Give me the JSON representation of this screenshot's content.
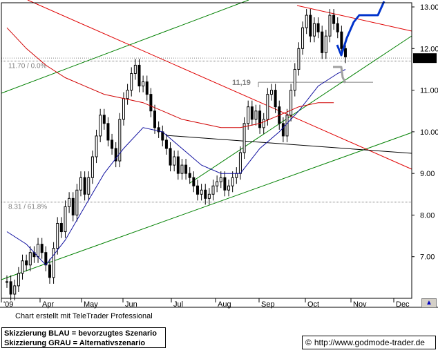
{
  "chart_data": {
    "type": "candlestick",
    "y_ticks": [
      "13.00",
      "12.00",
      "11.00",
      "10.00",
      "9.00",
      "8.00",
      "7.00"
    ],
    "x_ticks": [
      "'09",
      "Apr",
      "May",
      "Jun",
      "Jul",
      "Aug",
      "Sep",
      "Oct",
      "Nov",
      "Dec"
    ],
    "ylim": [
      6.0,
      13.1
    ],
    "last_price": "11.77",
    "fib_levels": [
      {
        "label": "11.70 / 0.0%",
        "value": 11.7
      },
      {
        "label": "8.31 / 61.8%",
        "value": 8.31
      }
    ],
    "annotation": {
      "label": "11,19",
      "value": 11.19
    },
    "colors": {
      "price": "#000000",
      "ma_fast": "#1010a0",
      "ma_slow": "#d00000",
      "uptrend": "#008000",
      "downtrend": "#e00000",
      "support": "#000000",
      "scenario_blue": "#0033cc",
      "scenario_grey": "#a0a0a0",
      "last_price_bg": "#000000"
    },
    "price_path": [
      [
        0,
        6.4
      ],
      [
        1,
        6.1
      ],
      [
        2,
        6.3
      ],
      [
        3,
        6.6
      ],
      [
        4,
        6.9
      ],
      [
        5,
        6.8
      ],
      [
        6,
        7.1
      ],
      [
        7,
        7.0
      ],
      [
        8,
        7.3
      ],
      [
        9,
        7.1
      ],
      [
        10,
        6.8
      ],
      [
        11,
        6.5
      ],
      [
        12,
        7.2
      ],
      [
        13,
        7.8
      ],
      [
        14,
        7.6
      ],
      [
        15,
        8.2
      ],
      [
        16,
        8.4
      ],
      [
        17,
        8.0
      ],
      [
        18,
        8.6
      ],
      [
        19,
        8.9
      ],
      [
        20,
        8.5
      ],
      [
        21,
        8.9
      ],
      [
        22,
        9.4
      ],
      [
        23,
        9.9
      ],
      [
        24,
        10.4
      ],
      [
        25,
        10.2
      ],
      [
        26,
        9.8
      ],
      [
        27,
        9.6
      ],
      [
        28,
        9.3
      ],
      [
        29,
        10.3
      ],
      [
        30,
        10.8
      ],
      [
        31,
        11.0
      ],
      [
        32,
        11.4
      ],
      [
        33,
        11.6
      ],
      [
        34,
        11.1
      ],
      [
        35,
        11.2
      ],
      [
        36,
        10.9
      ],
      [
        37,
        10.5
      ],
      [
        38,
        10.1
      ],
      [
        39,
        10.0
      ],
      [
        40,
        9.8
      ],
      [
        41,
        9.6
      ],
      [
        42,
        9.2
      ],
      [
        43,
        9.4
      ],
      [
        44,
        9.0
      ],
      [
        45,
        9.2
      ],
      [
        46,
        9.0
      ],
      [
        47,
        8.9
      ],
      [
        48,
        8.7
      ],
      [
        49,
        8.5
      ],
      [
        50,
        8.6
      ],
      [
        51,
        8.4
      ],
      [
        52,
        8.5
      ],
      [
        53,
        8.7
      ],
      [
        54,
        8.8
      ],
      [
        55,
        8.9
      ],
      [
        56,
        8.6
      ],
      [
        57,
        8.7
      ],
      [
        58,
        8.9
      ],
      [
        59,
        9.0
      ],
      [
        60,
        9.5
      ],
      [
        61,
        10.2
      ],
      [
        62,
        10.6
      ],
      [
        63,
        10.3
      ],
      [
        64,
        10.5
      ],
      [
        65,
        10.1
      ],
      [
        66,
        10.3
      ],
      [
        67,
        10.9
      ],
      [
        68,
        11.0
      ],
      [
        69,
        10.6
      ],
      [
        70,
        10.2
      ],
      [
        71,
        9.9
      ],
      [
        72,
        10.4
      ],
      [
        73,
        11.0
      ],
      [
        74,
        11.5
      ],
      [
        75,
        12.0
      ],
      [
        76,
        12.5
      ],
      [
        77,
        12.8
      ],
      [
        78,
        12.3
      ],
      [
        79,
        12.6
      ],
      [
        80,
        12.4
      ],
      [
        81,
        11.9
      ],
      [
        82,
        12.3
      ],
      [
        83,
        12.8
      ],
      [
        84,
        12.6
      ],
      [
        85,
        12.4
      ],
      [
        86,
        12.0
      ],
      [
        87,
        11.8
      ]
    ],
    "ma_fast": [
      [
        0,
        7.6
      ],
      [
        5,
        7.3
      ],
      [
        10,
        6.8
      ],
      [
        15,
        7.4
      ],
      [
        20,
        8.2
      ],
      [
        25,
        9.0
      ],
      [
        30,
        9.6
      ],
      [
        35,
        10.1
      ],
      [
        40,
        10.0
      ],
      [
        45,
        9.6
      ],
      [
        50,
        9.2
      ],
      [
        55,
        9.0
      ],
      [
        60,
        9.0
      ],
      [
        65,
        9.6
      ],
      [
        70,
        10.0
      ],
      [
        75,
        10.5
      ],
      [
        80,
        11.1
      ],
      [
        85,
        11.4
      ],
      [
        87,
        11.5
      ]
    ],
    "ma_slow": [
      [
        0,
        12.5
      ],
      [
        5,
        12.0
      ],
      [
        10,
        11.6
      ],
      [
        15,
        11.3
      ],
      [
        20,
        11.1
      ],
      [
        25,
        10.9
      ],
      [
        30,
        10.8
      ],
      [
        35,
        10.7
      ],
      [
        40,
        10.5
      ],
      [
        45,
        10.3
      ],
      [
        50,
        10.2
      ],
      [
        55,
        10.1
      ],
      [
        60,
        10.1
      ],
      [
        65,
        10.2
      ],
      [
        70,
        10.4
      ],
      [
        75,
        10.6
      ],
      [
        80,
        10.7
      ],
      [
        84,
        10.7
      ]
    ]
  }
}
